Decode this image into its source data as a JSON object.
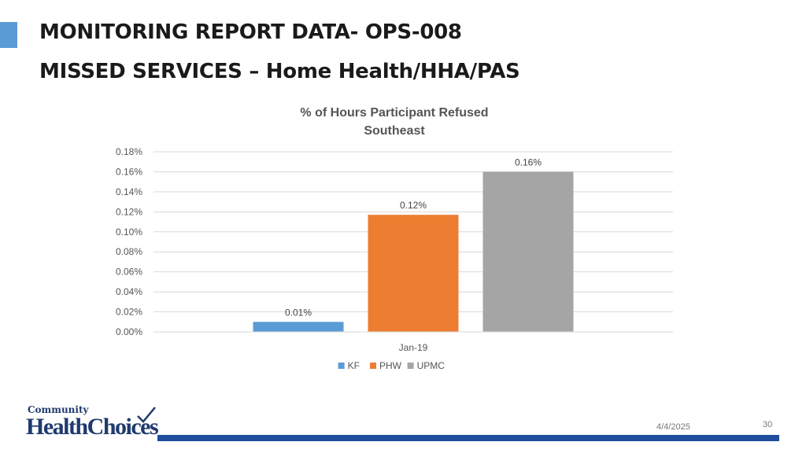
{
  "slide": {
    "title_line1": "MONITORING REPORT DATA- OPS-008",
    "title_line2": "MISSED SERVICES – Home Health/HHA/PAS",
    "date": "4/4/2025",
    "page_number": "30",
    "logo": {
      "top_text": "Community",
      "bottom_text": "HealthChoices"
    },
    "accent_color": "#5b9bd5",
    "footer_bar_color": "#1f4e9e"
  },
  "chart_data": {
    "type": "bar",
    "title": "% of Hours Participant Refused",
    "subtitle": "Southeast",
    "categories": [
      "Jan-19"
    ],
    "series": [
      {
        "name": "KF",
        "values": [
          0.0001
        ],
        "label": "0.01%",
        "color": "#5b9bd5"
      },
      {
        "name": "PHW",
        "values": [
          0.00117
        ],
        "label": "0.12%",
        "color": "#ed7d31"
      },
      {
        "name": "UPMC",
        "values": [
          0.0016
        ],
        "label": "0.16%",
        "color": "#a5a5a5"
      }
    ],
    "y_ticks": [
      "0.00%",
      "0.02%",
      "0.04%",
      "0.06%",
      "0.08%",
      "0.10%",
      "0.12%",
      "0.14%",
      "0.16%",
      "0.18%"
    ],
    "ylim": [
      0,
      0.0018
    ],
    "y_format": "percent",
    "grid": true,
    "legend_position": "bottom"
  }
}
